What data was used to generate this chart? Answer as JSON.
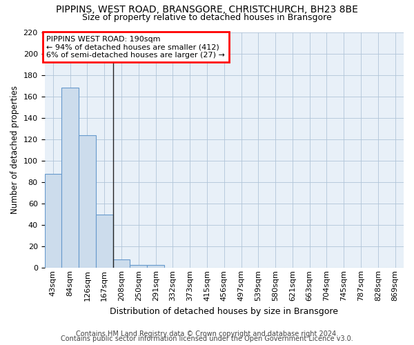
{
  "title": "PIPPINS, WEST ROAD, BRANSGORE, CHRISTCHURCH, BH23 8BE",
  "subtitle": "Size of property relative to detached houses in Bransgore",
  "xlabel": "Distribution of detached houses by size in Bransgore",
  "ylabel": "Number of detached properties",
  "footer1": "Contains HM Land Registry data © Crown copyright and database right 2024.",
  "footer2": "Contains public sector information licensed under the Open Government Licence v3.0.",
  "annotation_line1": "PIPPINS WEST ROAD: 190sqm",
  "annotation_line2": "← 94% of detached houses are smaller (412)",
  "annotation_line3": "6% of semi-detached houses are larger (27) →",
  "bar_color": "#ccdcec",
  "bar_edge_color": "#6699cc",
  "categories": [
    "43sqm",
    "84sqm",
    "126sqm",
    "167sqm",
    "208sqm",
    "250sqm",
    "291sqm",
    "332sqm",
    "373sqm",
    "415sqm",
    "456sqm",
    "497sqm",
    "539sqm",
    "580sqm",
    "621sqm",
    "663sqm",
    "704sqm",
    "745sqm",
    "787sqm",
    "828sqm",
    "869sqm"
  ],
  "values": [
    88,
    168,
    124,
    50,
    8,
    3,
    3,
    0,
    0,
    0,
    0,
    0,
    0,
    0,
    0,
    0,
    0,
    0,
    0,
    0,
    0
  ],
  "ylim": [
    0,
    220
  ],
  "yticks": [
    0,
    20,
    40,
    60,
    80,
    100,
    120,
    140,
    160,
    180,
    200,
    220
  ],
  "bg_color": "#e8f0f8",
  "title_fontsize": 10,
  "subtitle_fontsize": 9,
  "ylabel_fontsize": 8.5,
  "xlabel_fontsize": 9,
  "tick_fontsize": 8,
  "footer_fontsize": 7
}
